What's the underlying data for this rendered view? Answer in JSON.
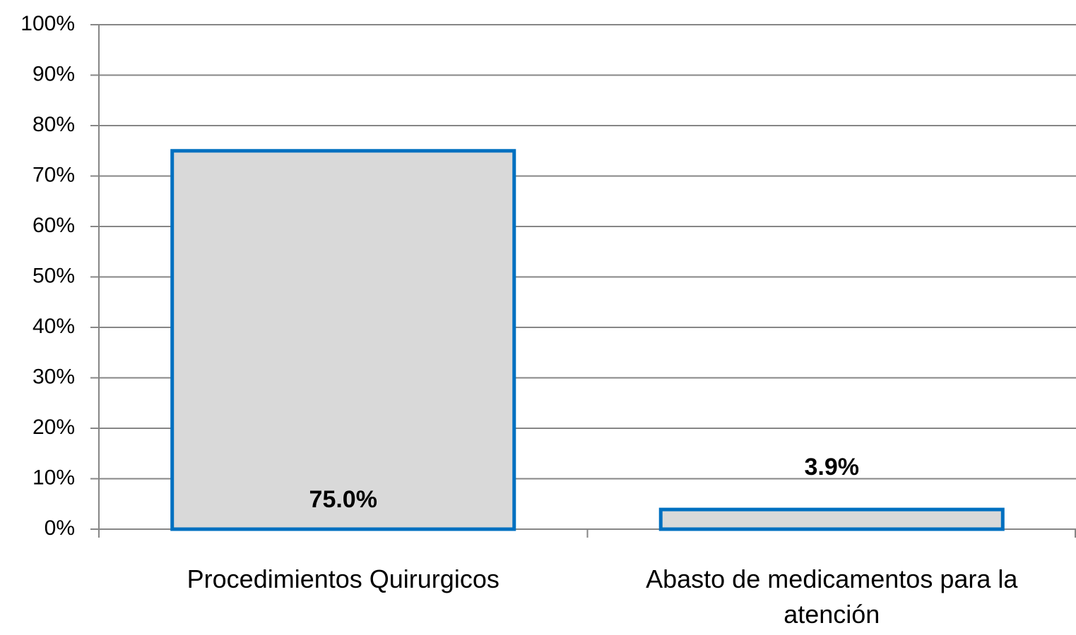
{
  "chart_data": {
    "type": "bar",
    "categories": [
      "Procedimientos Quirurgicos",
      "Abasto de medicamentos para la atención"
    ],
    "values": [
      75.0,
      3.9
    ],
    "value_labels": [
      "75.0%",
      "3.9%"
    ],
    "color": "#d9d9d9",
    "edgecolor": "#0070c0",
    "ylim": [
      0,
      100
    ],
    "yticks": [
      {
        "value": 0,
        "label": "0%"
      },
      {
        "value": 10,
        "label": "10%"
      },
      {
        "value": 20,
        "label": "20%"
      },
      {
        "value": 30,
        "label": "30%"
      },
      {
        "value": 40,
        "label": "40%"
      },
      {
        "value": 50,
        "label": "50%"
      },
      {
        "value": 60,
        "label": "60%"
      },
      {
        "value": 70,
        "label": "70%"
      },
      {
        "value": 80,
        "label": "80%"
      },
      {
        "value": 90,
        "label": "90%"
      },
      {
        "value": 100,
        "label": "100%"
      }
    ],
    "grid": true
  }
}
